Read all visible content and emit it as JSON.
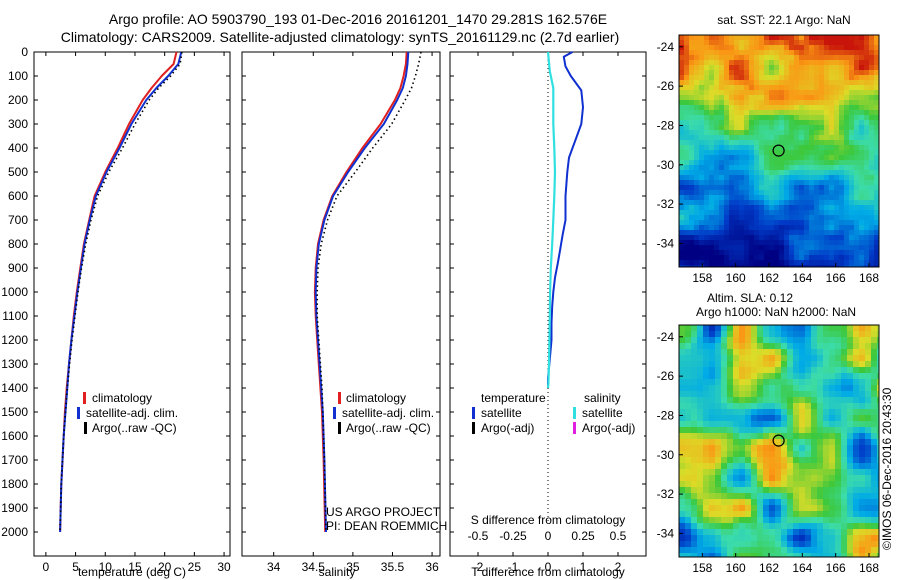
{
  "header": {
    "line1": "Argo profile: AO 5903790_193 01-Dec-2016 20161201_1470 29.281S 162.576E",
    "line2": "Climatology: CARS2009. Satellite-adjusted climatology: synTS_20161129.nc (2.7d earlier)"
  },
  "credits": {
    "project": "US ARGO PROJECT",
    "pi": "PI: DEAN ROEMMICH",
    "stamp": "©IMOS 06-Dec-2016 20:43:30"
  },
  "colors": {
    "climatology": "#e02020",
    "satellite": "#1030d0",
    "argo": "#000000",
    "satellite_salinity": "#30e0e0",
    "argo_adj_salinity": "#e020e0"
  },
  "chart_data": [
    {
      "type": "line",
      "name": "temperature-profile",
      "xlabel": "temperature (deg C)",
      "ylabel": "",
      "xlim": [
        -2,
        31
      ],
      "ylim": [
        2100,
        0
      ],
      "x_ticks": [
        0,
        5,
        10,
        15,
        20,
        25,
        30
      ],
      "y_ticks": [
        0,
        100,
        200,
        300,
        400,
        500,
        600,
        700,
        800,
        900,
        1000,
        1100,
        1200,
        1300,
        1400,
        1500,
        1600,
        1700,
        1800,
        1900,
        2000
      ],
      "legend": [
        "climatology",
        "satellite-adj. clim.",
        "Argo(..raw -QC)"
      ],
      "legend_position": "bottom-center",
      "series": [
        {
          "name": "climatology",
          "x": [
            22.0,
            21.5,
            19.5,
            17.8,
            16.3,
            14.0,
            12.1,
            10.0,
            8.2,
            7.3,
            6.4,
            5.8,
            5.2,
            4.7,
            4.3,
            3.9,
            3.5,
            3.2,
            3.0,
            2.8,
            2.6,
            2.5,
            2.45,
            2.4
          ],
          "y": [
            0,
            50,
            100,
            150,
            200,
            300,
            400,
            500,
            600,
            700,
            800,
            900,
            1000,
            1100,
            1200,
            1300,
            1400,
            1500,
            1600,
            1700,
            1800,
            1900,
            1950,
            2000
          ]
        },
        {
          "name": "satellite-adj. clim.",
          "x": [
            22.8,
            22.3,
            20.6,
            18.6,
            16.9,
            14.4,
            12.4,
            10.2,
            8.4,
            7.4,
            6.5,
            5.9,
            5.3,
            4.8,
            4.3,
            3.9,
            3.6,
            3.3,
            3.0,
            2.8,
            2.6,
            2.5,
            2.45,
            2.4
          ],
          "y": [
            0,
            50,
            100,
            150,
            200,
            300,
            400,
            500,
            600,
            700,
            800,
            900,
            1000,
            1100,
            1200,
            1300,
            1400,
            1500,
            1600,
            1700,
            1800,
            1900,
            1950,
            2000
          ]
        },
        {
          "name": "Argo(..raw -QC)",
          "x": [
            22.9,
            22.6,
            21.0,
            19.0,
            17.4,
            15.0,
            12.9,
            10.6,
            8.7,
            7.6,
            6.7,
            6.0,
            5.4,
            4.9,
            4.4,
            4.0,
            3.6,
            3.3,
            3.0,
            2.8,
            2.6,
            2.5,
            2.45,
            2.4
          ],
          "y": [
            0,
            50,
            100,
            150,
            200,
            300,
            400,
            500,
            600,
            700,
            800,
            900,
            1000,
            1100,
            1200,
            1300,
            1400,
            1500,
            1600,
            1700,
            1800,
            1900,
            1950,
            2000
          ]
        }
      ]
    },
    {
      "type": "line",
      "name": "salinity-profile",
      "xlabel": "salinity",
      "ylabel": "",
      "xlim": [
        33.6,
        36.1
      ],
      "ylim": [
        2100,
        0
      ],
      "x_ticks": [
        34,
        34.5,
        35,
        35.5,
        36
      ],
      "x_tick_labels": [
        "34",
        "34.5",
        "35",
        "35.5",
        "36"
      ],
      "legend": [
        "climatology",
        "satellite-adj. clim.",
        "Argo(..raw -QC)"
      ],
      "legend_position": "bottom-center",
      "series": [
        {
          "name": "climatology",
          "x": [
            35.68,
            35.67,
            35.64,
            35.6,
            35.53,
            35.35,
            35.12,
            34.92,
            34.74,
            34.63,
            34.56,
            34.53,
            34.52,
            34.53,
            34.55,
            34.57,
            34.59,
            34.61,
            34.62,
            34.63,
            34.64,
            34.65
          ],
          "y": [
            0,
            50,
            100,
            150,
            200,
            300,
            400,
            500,
            600,
            700,
            800,
            900,
            1000,
            1100,
            1200,
            1300,
            1400,
            1500,
            1600,
            1700,
            1850,
            2000
          ]
        },
        {
          "name": "satellite-adj. clim.",
          "x": [
            35.7,
            35.69,
            35.67,
            35.63,
            35.56,
            35.39,
            35.15,
            34.94,
            34.75,
            34.64,
            34.57,
            34.54,
            34.53,
            34.54,
            34.56,
            34.58,
            34.6,
            34.62,
            34.63,
            34.64,
            34.65,
            34.66
          ],
          "y": [
            0,
            50,
            100,
            150,
            200,
            300,
            400,
            500,
            600,
            700,
            800,
            900,
            1000,
            1100,
            1200,
            1300,
            1400,
            1500,
            1600,
            1700,
            1850,
            2000
          ]
        },
        {
          "name": "Argo(..raw -QC)",
          "x": [
            35.86,
            35.83,
            35.79,
            35.74,
            35.66,
            35.49,
            35.25,
            35.03,
            34.8,
            34.68,
            34.6,
            34.56,
            34.55,
            34.55,
            34.57,
            34.59,
            34.61,
            34.62,
            34.63,
            34.64,
            34.65,
            34.66
          ],
          "y": [
            0,
            50,
            100,
            150,
            200,
            300,
            400,
            500,
            600,
            700,
            800,
            900,
            1000,
            1100,
            1200,
            1300,
            1400,
            1500,
            1600,
            1700,
            1850,
            2000
          ]
        }
      ]
    },
    {
      "type": "line",
      "name": "difference-from-climatology",
      "xlabel": "T difference from climatology",
      "xlabel_top": "S difference from climatology",
      "xlim": [
        -2.8,
        2.8
      ],
      "ylim": [
        2100,
        0
      ],
      "x_ticks": [
        -2,
        -1,
        0,
        1,
        2
      ],
      "top_ticks": [
        -0.5,
        -0.25,
        0,
        0.25,
        0.5
      ],
      "top_tick_labels": [
        "-0.5",
        "-0.25",
        "0",
        "0.25",
        "0.5"
      ],
      "legend_headers": [
        "temperature",
        "salinity"
      ],
      "legend": [
        "satellite",
        "Argo(-adj)",
        "satellite",
        "Argo(-adj)"
      ],
      "legend_position": "bottom-center",
      "series": [
        {
          "name": "temperature satellite",
          "x": [
            0.7,
            0.45,
            0.5,
            0.65,
            0.95,
            1.0,
            0.95,
            0.75,
            0.6,
            0.55,
            0.5,
            0.5,
            0.42,
            0.35,
            0.28,
            0.2,
            0.15,
            0.12,
            0.1,
            0.1,
            0.05,
            0.0,
            0.0
          ],
          "y": [
            0,
            20,
            60,
            100,
            160,
            230,
            300,
            380,
            440,
            500,
            600,
            700,
            760,
            820,
            880,
            940,
            1000,
            1060,
            1130,
            1200,
            1280,
            1360,
            1400
          ]
        },
        {
          "name": "salinity satellite",
          "x": [
            0.0,
            0.05,
            0.15,
            0.15,
            0.15,
            0.18,
            0.2,
            0.18,
            0.15,
            0.12,
            0.08,
            0.06,
            0.05,
            0.04,
            0.03,
            0.02,
            0.01,
            0.0
          ],
          "y": [
            0,
            80,
            150,
            250,
            300,
            400,
            500,
            600,
            700,
            800,
            900,
            1000,
            1100,
            1200,
            1300,
            1340,
            1380,
            1400
          ]
        }
      ]
    }
  ],
  "maps": [
    {
      "title": "sat. SST: 22.1  Argo: NaN",
      "lon_ticks": [
        158,
        160,
        162,
        164,
        166,
        168
      ],
      "lat_ticks": [
        -24,
        -26,
        -28,
        -30,
        -32,
        -34
      ],
      "lon_range": [
        156.6,
        168.6
      ],
      "lat_range": [
        -35.2,
        -23.4
      ],
      "marker": {
        "lon": 162.576,
        "lat": -29.281
      }
    },
    {
      "title_line1": "Altim. SLA: 0.12",
      "title_line2": "Argo h1000: NaN h2000: NaN",
      "lon_ticks": [
        158,
        160,
        162,
        164,
        166,
        168
      ],
      "lat_ticks": [
        -24,
        -26,
        -28,
        -30,
        -32,
        -34
      ],
      "lon_range": [
        156.6,
        168.6
      ],
      "lat_range": [
        -35.2,
        -23.4
      ],
      "marker": {
        "lon": 162.576,
        "lat": -29.281
      }
    }
  ]
}
